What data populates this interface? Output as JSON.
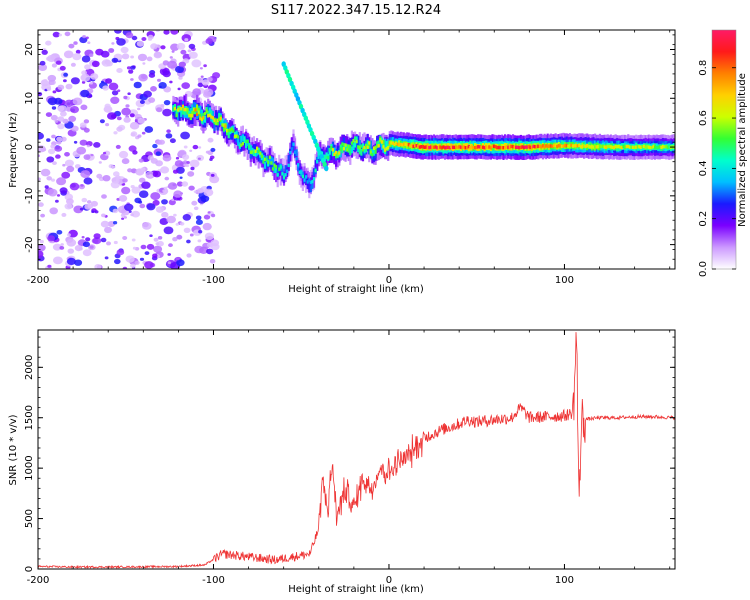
{
  "figure": {
    "title": "S117.2022.347.15.12.R24"
  },
  "chart_data": [
    {
      "type": "heatmap",
      "xlabel": "Height of straight line (km)",
      "ylabel": "Frequency (Hz)",
      "xlim": [
        -200,
        163
      ],
      "ylim": [
        -25,
        24
      ],
      "xticks": [
        -200,
        -100,
        0,
        100
      ],
      "yticks": [
        -20,
        -10,
        0,
        10,
        20
      ],
      "colorbar": {
        "label": "Normalized spectral amplitude",
        "range": [
          0,
          0.95
        ],
        "ticks": [
          0.0,
          0.2,
          0.4,
          0.6,
          0.8
        ],
        "colors": [
          "#ffffff",
          "#cc99ff",
          "#7a00ff",
          "#1a1aff",
          "#00bfff",
          "#00ffcc",
          "#33ff33",
          "#ccff00",
          "#ffd000",
          "#ff8000",
          "#ff1a1a",
          "#ff1a66"
        ]
      },
      "ridge": [
        {
          "x": -123,
          "y": 7.8,
          "amp": 0.55
        },
        {
          "x": -110,
          "y": 7.0,
          "amp": 0.7
        },
        {
          "x": -100,
          "y": 6.0,
          "amp": 0.6
        },
        {
          "x": -93,
          "y": 4.0,
          "amp": 0.65
        },
        {
          "x": -85,
          "y": 1.5,
          "amp": 0.5
        },
        {
          "x": -75,
          "y": -1.5,
          "amp": 0.55
        },
        {
          "x": -65,
          "y": -4.0,
          "amp": 0.5
        },
        {
          "x": -60,
          "y": -6.0,
          "amp": 0.4
        },
        {
          "x": -55,
          "y": 0.5,
          "amp": 0.35
        },
        {
          "x": -50,
          "y": -5.5,
          "amp": 0.4
        },
        {
          "x": -45,
          "y": -8.0,
          "amp": 0.35
        },
        {
          "x": -40,
          "y": -2.0,
          "amp": 0.45
        },
        {
          "x": -30,
          "y": -1.0,
          "amp": 0.6
        },
        {
          "x": -20,
          "y": 0.5,
          "amp": 0.55
        },
        {
          "x": -10,
          "y": -0.5,
          "amp": 0.6
        },
        {
          "x": 0,
          "y": 0.8,
          "amp": 0.65
        },
        {
          "x": 20,
          "y": 0.0,
          "amp": 0.85
        },
        {
          "x": 50,
          "y": 0.0,
          "amp": 0.8
        },
        {
          "x": 80,
          "y": 0.0,
          "amp": 0.85
        },
        {
          "x": 100,
          "y": 0.3,
          "amp": 0.7
        },
        {
          "x": 130,
          "y": 0.0,
          "amp": 0.6
        },
        {
          "x": 163,
          "y": 0.0,
          "amp": 0.55
        }
      ]
    },
    {
      "type": "line",
      "xlabel": "Height of straight line (km)",
      "ylabel": "SNR (10 * v/v)",
      "xlim": [
        -200,
        163
      ],
      "ylim": [
        0,
        2370
      ],
      "xticks": [
        -200,
        -100,
        0,
        100
      ],
      "yticks": [
        0,
        500,
        1000,
        1500,
        2000
      ],
      "color": "#ee3333",
      "series": [
        {
          "x": [
            -200,
            -180,
            -160,
            -140,
            -120,
            -105,
            -95,
            -85,
            -75,
            -65,
            -55,
            -45,
            -40,
            -38,
            -35,
            -32,
            -30,
            -25,
            -20,
            -15,
            -10,
            -5,
            0,
            5,
            10,
            15,
            20,
            30,
            40,
            45,
            50,
            60,
            70,
            75,
            80,
            90,
            100,
            105,
            107,
            108,
            110,
            115,
            120,
            130,
            140,
            150,
            163
          ],
          "y": [
            25,
            20,
            20,
            22,
            25,
            40,
            150,
            130,
            110,
            90,
            120,
            150,
            400,
            900,
            600,
            1050,
            500,
            800,
            600,
            900,
            800,
            1000,
            950,
            1050,
            1100,
            1200,
            1300,
            1380,
            1440,
            1480,
            1460,
            1480,
            1500,
            1600,
            1500,
            1510,
            1520,
            1550,
            2370,
            700,
            1480,
            1490,
            1500,
            1500,
            1510,
            1510,
            1500
          ]
        }
      ]
    }
  ]
}
